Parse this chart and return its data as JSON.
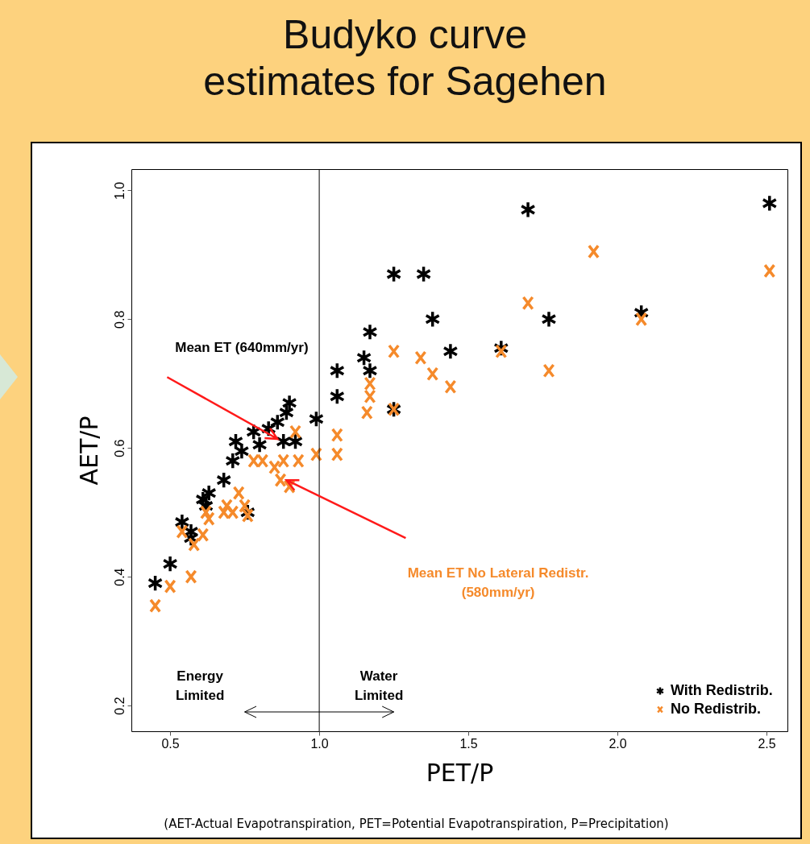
{
  "chart_data": {
    "type": "scatter",
    "title": "Budyko curve\nestimates for Sagehen",
    "xlabel": "PET/P",
    "ylabel": "AET/P",
    "xlim": [
      0.37,
      2.57
    ],
    "ylim": [
      0.16,
      1.033
    ],
    "xticks": [
      0.5,
      {
        "value": 1,
        "label": "1.0"
      },
      1.5,
      {
        "value": 2,
        "label": "2.0"
      },
      2.5
    ],
    "yticks": [
      0.2,
      0.4,
      0.6,
      0.8,
      {
        "value": 1,
        "label": "1.0"
      }
    ],
    "grid": false,
    "legend": "bottom right",
    "ref_lines": [
      {
        "axis": "x",
        "value": 1,
        "label": null,
        "color": "#000000"
      }
    ],
    "annotations": [
      "Mean ET (640mm/yr)",
      "Mean ET No Lateral Redistr.\n(580mm/yr)",
      "Energy\nLimited",
      "Water\nLimited",
      "(AET-Actual Evapotranspiration, PET=Potential Evapotranspiration, P=Precipitation)"
    ],
    "series": [
      {
        "name": "With Redistrib.",
        "color": "#000000",
        "x": [
          1.7,
          2.51,
          1.25,
          1.35,
          1.38,
          1.77,
          2.08,
          1.44,
          1.61,
          1.06,
          1.06,
          1.17,
          1.15,
          1.17,
          1.25,
          0.99,
          0.45,
          0.5,
          0.54,
          0.57,
          0.57,
          0.62,
          0.61,
          0.63,
          0.68,
          0.71,
          0.72,
          0.74,
          0.78,
          0.8,
          0.83,
          0.86,
          0.88,
          0.9,
          0.89,
          0.92,
          0.76
        ],
        "values": [
          0.97,
          0.98,
          0.87,
          0.87,
          0.8,
          0.8,
          0.81,
          0.75,
          0.755,
          0.72,
          0.68,
          0.78,
          0.74,
          0.72,
          0.66,
          0.645,
          0.39,
          0.42,
          0.485,
          0.47,
          0.46,
          0.51,
          0.52,
          0.53,
          0.55,
          0.58,
          0.61,
          0.595,
          0.625,
          0.605,
          0.63,
          0.64,
          0.61,
          0.67,
          0.655,
          0.61,
          0.5
        ]
      },
      {
        "name": "No Redistrib.",
        "color": "#f58a2b",
        "x": [
          1.92,
          2.51,
          1.7,
          1.25,
          1.34,
          1.38,
          1.44,
          1.61,
          1.77,
          2.08,
          1.17,
          1.17,
          1.16,
          1.25,
          1.06,
          1.06,
          0.99,
          0.45,
          0.5,
          0.57,
          0.54,
          0.58,
          0.61,
          0.63,
          0.62,
          0.68,
          0.69,
          0.71,
          0.73,
          0.75,
          0.76,
          0.78,
          0.81,
          0.85,
          0.88,
          0.93,
          0.87,
          0.9,
          0.92
        ],
        "values": [
          0.905,
          0.875,
          0.825,
          0.75,
          0.74,
          0.715,
          0.695,
          0.75,
          0.72,
          0.8,
          0.7,
          0.68,
          0.655,
          0.66,
          0.62,
          0.59,
          0.59,
          0.355,
          0.385,
          0.4,
          0.47,
          0.45,
          0.465,
          0.49,
          0.5,
          0.5,
          0.51,
          0.5,
          0.53,
          0.51,
          0.495,
          0.58,
          0.58,
          0.57,
          0.58,
          0.58,
          0.55,
          0.54,
          0.625
        ]
      }
    ]
  }
}
